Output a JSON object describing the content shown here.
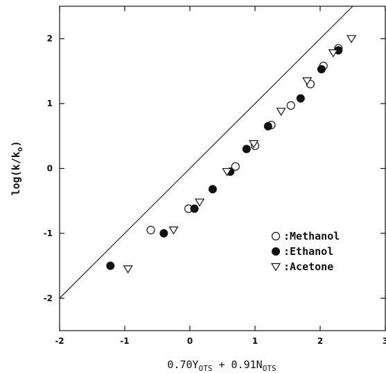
{
  "chart_data": {
    "type": "scatter",
    "xlabel": {
      "main": "0.70Y",
      "sub1": "OTS",
      "mid": " + 0.91N",
      "sub2": "OTS"
    },
    "ylabel": {
      "main": "log(k/k",
      "sub": "o",
      "end": ")"
    },
    "xlim": [
      -2,
      3
    ],
    "ylim": [
      -2.5,
      2.5
    ],
    "xticks": [
      -2,
      -1,
      0,
      1,
      2,
      3
    ],
    "yticks": [
      -2,
      -1,
      0,
      1,
      2
    ],
    "xtick_labels": [
      "-2",
      "-1",
      "0",
      "1",
      "2",
      "3"
    ],
    "ytick_labels": [
      "-2",
      "-1",
      "0",
      "1",
      "2"
    ],
    "fit_line": {
      "slope": 1.0,
      "intercept": 0.0
    },
    "legend_position": "lower-right",
    "series": [
      {
        "name": ":Methanol",
        "marker": "open-circle",
        "points": [
          [
            -0.6,
            -0.95
          ],
          [
            -0.02,
            -0.62
          ],
          [
            0.7,
            0.03
          ],
          [
            1.0,
            0.35
          ],
          [
            1.25,
            0.67
          ],
          [
            1.55,
            0.97
          ],
          [
            1.85,
            1.3
          ],
          [
            2.05,
            1.58
          ],
          [
            2.28,
            1.85
          ]
        ]
      },
      {
        "name": ":Ethanol",
        "marker": "filled-circle",
        "points": [
          [
            -1.22,
            -1.5
          ],
          [
            -0.4,
            -1.0
          ],
          [
            0.07,
            -0.62
          ],
          [
            0.35,
            -0.32
          ],
          [
            0.62,
            -0.05
          ],
          [
            0.87,
            0.3
          ],
          [
            1.2,
            0.65
          ],
          [
            1.7,
            1.08
          ],
          [
            2.02,
            1.53
          ],
          [
            2.28,
            1.82
          ]
        ]
      },
      {
        "name": ":Acetone",
        "marker": "open-triangle-down",
        "points": [
          [
            -0.95,
            -1.55
          ],
          [
            -0.25,
            -0.95
          ],
          [
            0.15,
            -0.52
          ],
          [
            0.57,
            -0.05
          ],
          [
            0.98,
            0.38
          ],
          [
            1.4,
            0.88
          ],
          [
            1.8,
            1.35
          ],
          [
            2.2,
            1.78
          ],
          [
            2.48,
            2.0
          ]
        ]
      }
    ]
  }
}
